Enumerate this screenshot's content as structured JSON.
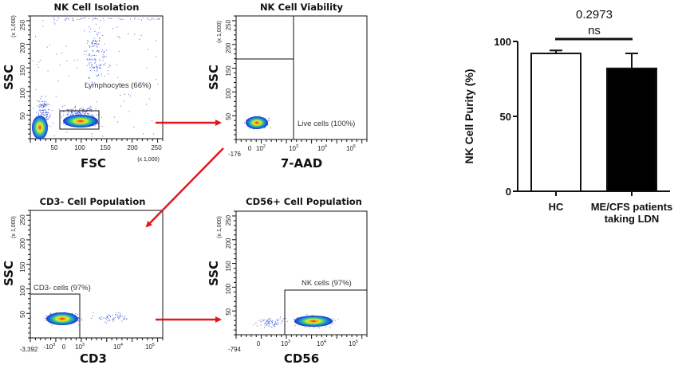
{
  "flow_panels": [
    {
      "title": "NK Cell Isolation",
      "xlabel": "FSC",
      "ylabel": "SSC",
      "x_unit": "(x 1,000)",
      "y_unit": "(x 1,000)",
      "x_ticks": [
        "50",
        "100",
        "150",
        "200",
        "250"
      ],
      "y_ticks": [
        "50",
        "100",
        "150",
        "200",
        "250"
      ],
      "gate_label": "Lymphocytes (66%)"
    },
    {
      "title": "NK Cell Viability",
      "xlabel": "7-AAD",
      "ylabel": "SSC",
      "x_min_label": "-176",
      "y_unit": "(x 1,000)",
      "x_ticks": [
        "0",
        "10",
        "10",
        "10",
        "10"
      ],
      "x_tick_exps": [
        "",
        "2",
        "3",
        "4",
        "5"
      ],
      "y_ticks": [
        "50",
        "100",
        "150",
        "200",
        "250"
      ],
      "gate_label": "Live cells (100%)"
    },
    {
      "title": "CD3- Cell Population",
      "xlabel": "CD3",
      "ylabel": "SSC",
      "x_min_label": "-3,392",
      "y_unit": "(x 1,000)",
      "x_ticks": [
        "-10",
        "0",
        "10",
        "10",
        "10"
      ],
      "x_tick_exps": [
        "3",
        "",
        "3",
        "4",
        "5"
      ],
      "y_ticks": [
        "50",
        "100",
        "150",
        "200",
        "250"
      ],
      "gate_label": "CD3- cells (97%)"
    },
    {
      "title": "CD56+ Cell Population",
      "xlabel": "CD56",
      "ylabel": "SSC",
      "x_min_label": "-794",
      "y_unit": "(x 1,000)",
      "x_ticks": [
        "0",
        "10",
        "10",
        "10"
      ],
      "x_tick_exps": [
        "",
        "3",
        "4",
        "5"
      ],
      "y_ticks": [
        "50",
        "100",
        "150",
        "200",
        "250"
      ],
      "gate_label": "NK cells (97%)"
    }
  ],
  "colors": {
    "arrow": "#e0191a",
    "bar_hc": "#ffffff",
    "bar_me": "#000000",
    "dots": "#2a3fd6"
  },
  "chart_data": {
    "type": "bar",
    "title": "",
    "xlabel": "",
    "ylabel": "NK Cell Purity (%)",
    "ylim": [
      0,
      100
    ],
    "y_ticks": [
      0,
      50,
      100
    ],
    "y_tick_labels": [
      "0",
      "50",
      "100"
    ],
    "categories": [
      "HC",
      "ME/CFS patients taking LDN"
    ],
    "category_lines": [
      [
        "HC"
      ],
      [
        "ME/CFS patients",
        "taking LDN"
      ]
    ],
    "values": [
      92,
      82
    ],
    "errors": [
      2,
      10
    ],
    "fills": [
      "#ffffff",
      "#000000"
    ],
    "significance": {
      "p_value": "0.2973",
      "label": "ns",
      "between": [
        "HC",
        "ME/CFS patients taking LDN"
      ]
    },
    "grid": false,
    "legend": "none"
  }
}
